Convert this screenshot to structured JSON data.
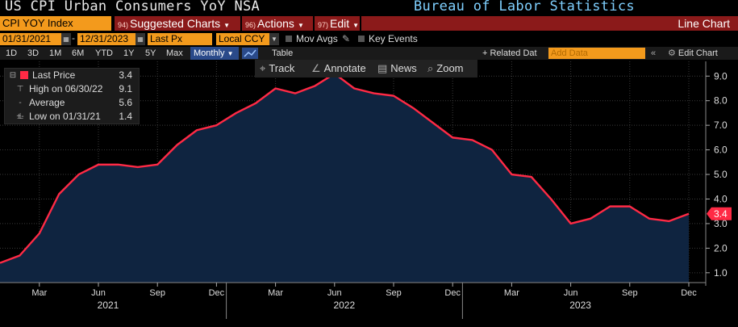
{
  "header": {
    "title": "US CPI Urban Consumers YoY NSA",
    "source": "Bureau of Labor Statistics"
  },
  "menu": {
    "ticker": "CPI YOY Index",
    "suggested": {
      "num": "94)",
      "label": "Suggested Charts"
    },
    "actions": {
      "num": "96)",
      "label": "Actions"
    },
    "edit": {
      "num": "97)",
      "label": "Edit"
    },
    "chart_type": "Line Chart"
  },
  "params": {
    "start_date": "01/31/2021",
    "end_date": "12/31/2023",
    "field": "Last Px",
    "currency": "Local CCY",
    "mov_avgs": "Mov Avgs",
    "key_events": "Key Events"
  },
  "toolbar": {
    "ranges": [
      "1D",
      "3D",
      "1M",
      "6M",
      "YTD",
      "1Y",
      "5Y",
      "Max"
    ],
    "frequency": "Monthly",
    "table": "Table",
    "related": "+ Related Dat",
    "add_data_placeholder": "Add Data",
    "edit_chart": "Edit Chart"
  },
  "sub_tools": {
    "track": "Track",
    "annotate": "Annotate",
    "news": "News",
    "zoom": "Zoom"
  },
  "legend": {
    "last_price_label": "Last Price",
    "last_price_value": "3.4",
    "high_label": "High on 06/30/22",
    "high_value": "9.1",
    "average_label": "Average",
    "average_value": "5.6",
    "low_label": "Low on 01/31/21",
    "low_value": "1.4"
  },
  "colors": {
    "line": "#ff2a45",
    "area": "#0f2440",
    "background": "#000000",
    "orange": "#f39a1c",
    "menu_red": "#8b1a1a"
  },
  "chart_data": {
    "type": "area",
    "x": [
      "2021-01",
      "2021-02",
      "2021-03",
      "2021-04",
      "2021-05",
      "2021-06",
      "2021-07",
      "2021-08",
      "2021-09",
      "2021-10",
      "2021-11",
      "2021-12",
      "2022-01",
      "2022-02",
      "2022-03",
      "2022-04",
      "2022-05",
      "2022-06",
      "2022-07",
      "2022-08",
      "2022-09",
      "2022-10",
      "2022-11",
      "2022-12",
      "2023-01",
      "2023-02",
      "2023-03",
      "2023-04",
      "2023-05",
      "2023-06",
      "2023-07",
      "2023-08",
      "2023-09",
      "2023-10",
      "2023-11",
      "2023-12"
    ],
    "series": [
      {
        "name": "Last Price",
        "values": [
          1.4,
          1.7,
          2.6,
          4.2,
          5.0,
          5.4,
          5.4,
          5.3,
          5.4,
          6.2,
          6.8,
          7.0,
          7.5,
          7.9,
          8.5,
          8.3,
          8.6,
          9.1,
          8.5,
          8.3,
          8.2,
          7.7,
          7.1,
          6.5,
          6.4,
          6.0,
          5.0,
          4.9,
          4.0,
          3.0,
          3.2,
          3.7,
          3.7,
          3.2,
          3.1,
          3.4
        ]
      }
    ],
    "last_value_label": "3.4",
    "ylim": [
      0.6,
      9.6
    ],
    "yticks": [
      "1.0",
      "2.0",
      "3.0",
      "4.0",
      "5.0",
      "6.0",
      "7.0",
      "8.0",
      "9.0"
    ],
    "ytick_values": [
      1,
      2,
      3,
      4,
      5,
      6,
      7,
      8,
      9
    ],
    "xticks": [
      {
        "index": 2,
        "label": "Mar"
      },
      {
        "index": 5,
        "label": "Jun"
      },
      {
        "index": 8,
        "label": "Sep"
      },
      {
        "index": 11,
        "label": "Dec"
      },
      {
        "index": 14,
        "label": "Mar"
      },
      {
        "index": 17,
        "label": "Jun"
      },
      {
        "index": 20,
        "label": "Sep"
      },
      {
        "index": 23,
        "label": "Dec"
      },
      {
        "index": 26,
        "label": "Mar"
      },
      {
        "index": 29,
        "label": "Jun"
      },
      {
        "index": 32,
        "label": "Sep"
      },
      {
        "index": 35,
        "label": "Dec"
      }
    ],
    "years": [
      {
        "index": 5,
        "label": "2021"
      },
      {
        "index": 17,
        "label": "2022"
      },
      {
        "index": 29,
        "label": "2023"
      }
    ],
    "grid": true,
    "legend_position": "top-left"
  }
}
